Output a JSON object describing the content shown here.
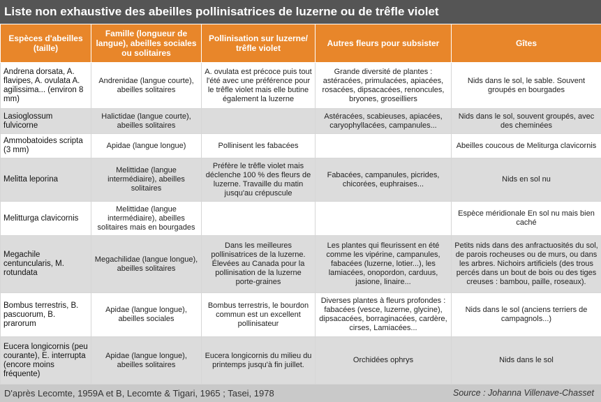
{
  "title": "Liste non exhaustive des abeilles pollinisatrices de luzerne ou de trêfle violet",
  "headers": [
    "Espèces d'abeilles (taille)",
    "Famille (longueur de langue), abeilles sociales ou solitaires",
    "Pollinisation sur luzerne/ trêfle violet",
    "Autres fleurs pour subsister",
    "Gîtes"
  ],
  "rows": [
    {
      "species": "Andrena dorsata, A. flavipes, A. ovulata A. agilissima... (environ 8 mm)",
      "family": "Andrenidae (langue courte), abeilles solitaires",
      "pollination": "A. ovulata est précoce puis tout l'été avec une préférence pour le trêfle violet mais elle butine également la luzerne",
      "flowers": "Grande diversité de plantes : astéracées, primulacées, apiacées, rosacées, dipsacacées, renoncules, bryones, groseilliers",
      "nests": "Nids dans le sol, le sable. Souvent groupés en bourgades"
    },
    {
      "species": "Lasioglossum fulvicorne",
      "family": "Halictidae (langue courte), abeilles solitaires",
      "pollination": "",
      "flowers": "Astéracées, scabieuses, apiacées, caryophyllacées, campanules...",
      "nests": "Nids dans le sol, souvent groupés, avec des cheminées"
    },
    {
      "species": "Ammobatoides scripta (3 mm)",
      "family": "Apidae (langue longue)",
      "pollination": "Pollinisent les fabacées",
      "flowers": "",
      "nests": "Abeilles coucous de Meliturga clavicornis"
    },
    {
      "species": "Melitta leporina",
      "family": "Melittidae (langue intermédiaire), abeilles solitaires",
      "pollination": "Préfère le trêfle violet mais déclenche 100 % des fleurs de luzerne. Travaille du matin jusqu'au crépuscule",
      "flowers": "Fabacées, campanules, picrides, chicorées, euphraises...",
      "nests": "Nids en sol nu"
    },
    {
      "species": "Melitturga clavicornis",
      "family": "Melittidae (langue intermédiaire), abeilles solitaires mais en bourgades",
      "pollination": "",
      "flowers": "",
      "nests": "Espèce méridionale En sol nu mais bien caché"
    },
    {
      "species": "Megachile centuncularis, M. rotundata",
      "family": "Megachilidae (langue longue), abeilles solitaires",
      "pollination": "Dans les meilleures pollinisatrices de la luzerne. Élevées au Canada pour la pollinisation de la luzerne porte-graines",
      "flowers": "Les plantes qui fleurissent en été comme les vipérine, campanules, fabacées (luzerne, lotier...), les lamiacées, onopordon, carduus, jasione, linaire...",
      "nests": "Petits nids dans des anfractuosités du sol, de parois rocheuses ou de murs, ou dans les arbres. Nichoirs artificiels (des trous percés dans un bout de bois ou des tiges creuses : bambou, paille, roseaux)."
    },
    {
      "species": "Bombus terrestris, B. pascuorum, B. prarorum",
      "family": "Apidae (langue longue), abeilles sociales",
      "pollination": "Bombus terrestris, le bourdon commun est un excellent pollinisateur",
      "flowers": "Diverses plantes à fleurs profondes : fabacées (vesce, luzerne, glycine), dipsacacées, borraginacées, cardère, cirses, Lamiacées...",
      "nests": "Nids dans le sol (anciens terriers de campagnols...)"
    },
    {
      "species": "Eucera longicornis (peu courante), E. interrupta (encore moins fréquente)",
      "family": "Apidae (langue longue), abeilles solitaires",
      "pollination": "Eucera longicornis du milieu du printemps jusqu'à fin juillet.",
      "flowers": "Orchidées ophrys",
      "nests": "Nids dans le sol"
    }
  ],
  "footer": {
    "reference": "D'après Lecomte, 1959A et B, Lecomte & Tigari, 1965 ; Tasei, 1978",
    "source": "Source : Johanna Villenave-Chasset"
  },
  "colors": {
    "title_bg": "#555555",
    "header_bg": "#e8862a",
    "row_shade": "#dcdcdc",
    "footer_bg": "#c9c9c9"
  }
}
